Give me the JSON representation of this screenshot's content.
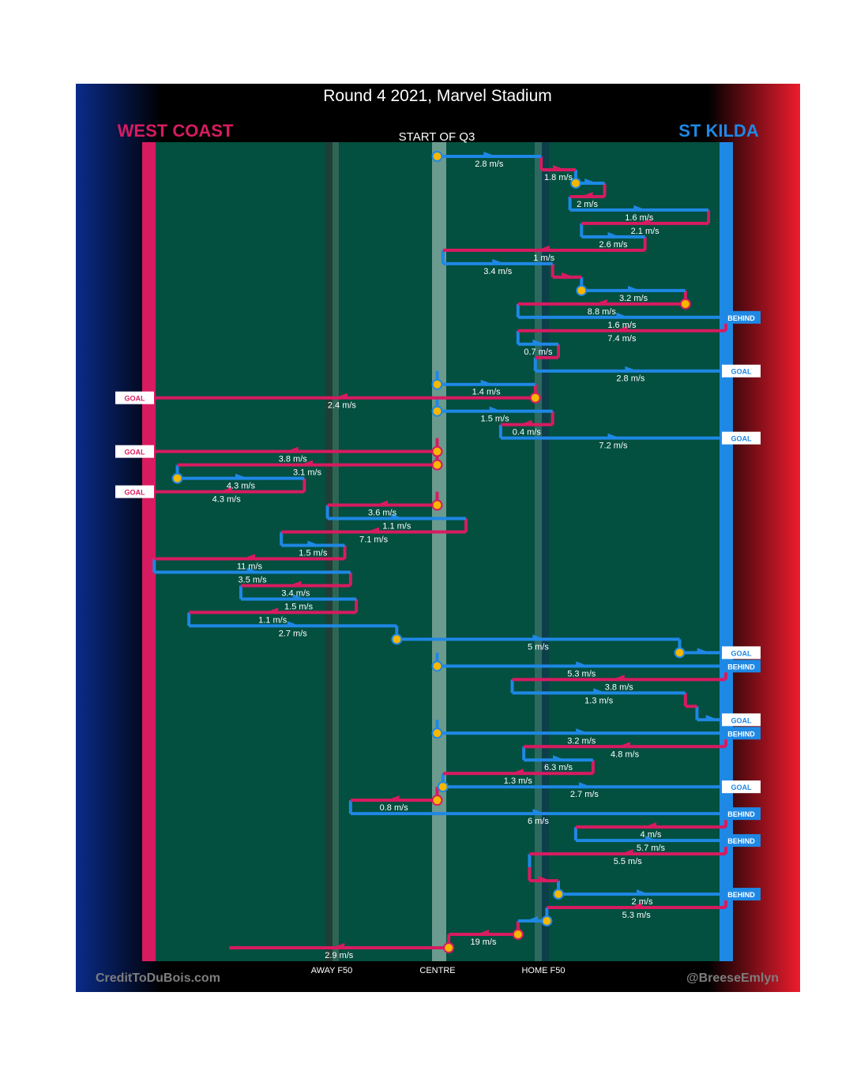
{
  "title": "Round 4 2021, Marvel Stadium",
  "subtitle": "START OF Q3",
  "teams": {
    "left": {
      "name": "WEST COAST",
      "color": "#d81b60"
    },
    "right": {
      "name": "ST KILDA",
      "color": "#1e88e5"
    }
  },
  "zones": {
    "away_f50": "AWAY F50",
    "centre": "CENTRE",
    "home_f50": "HOME F50"
  },
  "footer": {
    "left": "CreditToDuBois.com",
    "right": "@BreeseEmlyn"
  },
  "colors": {
    "field": "#034f40",
    "background": "#000000",
    "marker": "#f5b700",
    "west_coast": "#d81b60",
    "st_kilda": "#1e88e5"
  },
  "chart_data": {
    "type": "line",
    "description_axis": "field position (0 = West Coast goal line, 100 = St Kilda goal line) by possession sequence",
    "segments": [
      {
        "team": "STK",
        "from": 50,
        "to": 68,
        "speed": "2.8 m/s",
        "start_marker": true
      },
      {
        "team": "WCE",
        "from": 68,
        "to": 74,
        "speed": "1.8 m/s"
      },
      {
        "team": "STK",
        "from": 74,
        "to": 79,
        "speed": "",
        "start_marker": true
      },
      {
        "team": "WCE",
        "from": 79,
        "to": 73,
        "speed": "2 m/s"
      },
      {
        "team": "STK",
        "from": 73,
        "to": 97,
        "speed": "1.6 m/s"
      },
      {
        "team": "WCE",
        "from": 97,
        "to": 75,
        "speed": "2.1 m/s"
      },
      {
        "team": "STK",
        "from": 75,
        "to": 86,
        "speed": "2.6 m/s"
      },
      {
        "team": "WCE",
        "from": 86,
        "to": 51,
        "speed": "1 m/s"
      },
      {
        "team": "STK",
        "from": 51,
        "to": 70,
        "speed": "3.4 m/s"
      },
      {
        "team": "WCE",
        "from": 70,
        "to": 75,
        "speed": ""
      },
      {
        "team": "STK",
        "from": 75,
        "to": 93,
        "speed": "3.2 m/s",
        "start_marker": true
      },
      {
        "team": "WCE",
        "from": 93,
        "to": 64,
        "speed": "8.8 m/s",
        "start_marker": true
      },
      {
        "team": "STK",
        "from": 64,
        "to": 100,
        "speed": "1.6 m/s",
        "result": "BEHIND"
      },
      {
        "team": "WCE",
        "from": 100,
        "to": 64,
        "speed": "7.4 m/s"
      },
      {
        "team": "STK",
        "from": 64,
        "to": 71,
        "speed": "0.7 m/s"
      },
      {
        "team": "WCE",
        "from": 71,
        "to": 67,
        "speed": ""
      },
      {
        "team": "STK",
        "from": 67,
        "to": 100,
        "speed": "2.8 m/s",
        "result": "GOAL"
      },
      {
        "team": "STK",
        "from": 50,
        "to": 67,
        "speed": "1.4 m/s",
        "start_marker": true
      },
      {
        "team": "WCE",
        "from": 67,
        "to": 0,
        "speed": "2.4 m/s",
        "start_marker": true,
        "result": "GOAL"
      },
      {
        "team": "STK",
        "from": 50,
        "to": 70,
        "speed": "1.5 m/s",
        "start_marker": true
      },
      {
        "team": "WCE",
        "from": 70,
        "to": 61,
        "speed": "0.4 m/s"
      },
      {
        "team": "STK",
        "from": 61,
        "to": 100,
        "speed": "7.2 m/s",
        "result": "GOAL"
      },
      {
        "team": "WCE",
        "from": 50,
        "to": 0,
        "speed": "3.8 m/s",
        "start_marker": true,
        "result": "GOAL"
      },
      {
        "team": "WCE",
        "from": 50,
        "to": 5,
        "speed": "3.1 m/s",
        "start_marker": true
      },
      {
        "team": "STK",
        "from": 5,
        "to": 27,
        "speed": "4.3 m/s",
        "start_marker": true
      },
      {
        "team": "WCE",
        "from": 27,
        "to": 0,
        "speed": "4.3 m/s",
        "result": "GOAL"
      },
      {
        "team": "WCE",
        "from": 50,
        "to": 31,
        "speed": "3.6 m/s",
        "start_marker": true
      },
      {
        "team": "STK",
        "from": 31,
        "to": 55,
        "speed": "1.1 m/s"
      },
      {
        "team": "WCE",
        "from": 55,
        "to": 23,
        "speed": "7.1 m/s"
      },
      {
        "team": "STK",
        "from": 23,
        "to": 34,
        "speed": "1.5 m/s"
      },
      {
        "team": "WCE",
        "from": 34,
        "to": 1,
        "speed": "11 m/s"
      },
      {
        "team": "STK",
        "from": 1,
        "to": 35,
        "speed": "3.5 m/s"
      },
      {
        "team": "WCE",
        "from": 35,
        "to": 16,
        "speed": "3.4 m/s"
      },
      {
        "team": "STK",
        "from": 16,
        "to": 36,
        "speed": "1.5 m/s"
      },
      {
        "team": "WCE",
        "from": 36,
        "to": 7,
        "speed": "1.1 m/s"
      },
      {
        "team": "STK",
        "from": 7,
        "to": 43,
        "speed": "2.7 m/s"
      },
      {
        "team": "STK",
        "from": 43,
        "to": 92,
        "speed": "5 m/s",
        "start_marker": true
      },
      {
        "team": "STK",
        "from": 92,
        "to": 100,
        "speed": "",
        "start_marker": true,
        "result": "GOAL"
      },
      {
        "team": "STK",
        "from": 50,
        "to": 100,
        "speed": "5.3 m/s",
        "start_marker": true,
        "result": "BEHIND"
      },
      {
        "team": "WCE",
        "from": 100,
        "to": 63,
        "speed": "3.8 m/s"
      },
      {
        "team": "STK",
        "from": 63,
        "to": 93,
        "speed": "1.3 m/s"
      },
      {
        "team": "WCE",
        "from": 93,
        "to": 95,
        "speed": ""
      },
      {
        "team": "STK",
        "from": 95,
        "to": 100,
        "speed": "",
        "result": "GOAL"
      },
      {
        "team": "STK",
        "from": 50,
        "to": 100,
        "speed": "3.2 m/s",
        "start_marker": true,
        "result": "BEHIND"
      },
      {
        "team": "WCE",
        "from": 100,
        "to": 65,
        "speed": "4.8 m/s"
      },
      {
        "team": "STK",
        "from": 65,
        "to": 77,
        "speed": "6.3 m/s"
      },
      {
        "team": "WCE",
        "from": 77,
        "to": 51,
        "speed": "1.3 m/s"
      },
      {
        "team": "STK",
        "from": 51,
        "to": 100,
        "speed": "2.7 m/s",
        "start_marker": true,
        "result": "GOAL"
      },
      {
        "team": "WCE",
        "from": 50,
        "to": 35,
        "speed": "0.8 m/s",
        "start_marker": true
      },
      {
        "team": "STK",
        "from": 35,
        "to": 100,
        "speed": "6 m/s",
        "result": "BEHIND"
      },
      {
        "team": "WCE",
        "from": 100,
        "to": 74,
        "speed": "4 m/s"
      },
      {
        "team": "STK",
        "from": 74,
        "to": 100,
        "speed": "5.7 m/s",
        "result": "BEHIND"
      },
      {
        "team": "WCE",
        "from": 100,
        "to": 66,
        "speed": "5.5 m/s"
      },
      {
        "team": "STK",
        "from": 66,
        "to": 66,
        "speed": ""
      },
      {
        "team": "WCE",
        "from": 66,
        "to": 71,
        "speed": ""
      },
      {
        "team": "STK",
        "from": 71,
        "to": 100,
        "speed": "2 m/s",
        "start_marker": true,
        "result": "BEHIND"
      },
      {
        "team": "WCE",
        "from": 100,
        "to": 69,
        "speed": "5.3 m/s"
      },
      {
        "team": "STK",
        "from": 69,
        "to": 64,
        "speed": "",
        "start_marker": true
      },
      {
        "team": "WCE",
        "from": 64,
        "to": 52,
        "speed": "19 m/s",
        "start_marker": true
      },
      {
        "team": "WCE",
        "from": 52,
        "to": 14,
        "speed": "2.9 m/s",
        "start_marker": true
      }
    ]
  }
}
